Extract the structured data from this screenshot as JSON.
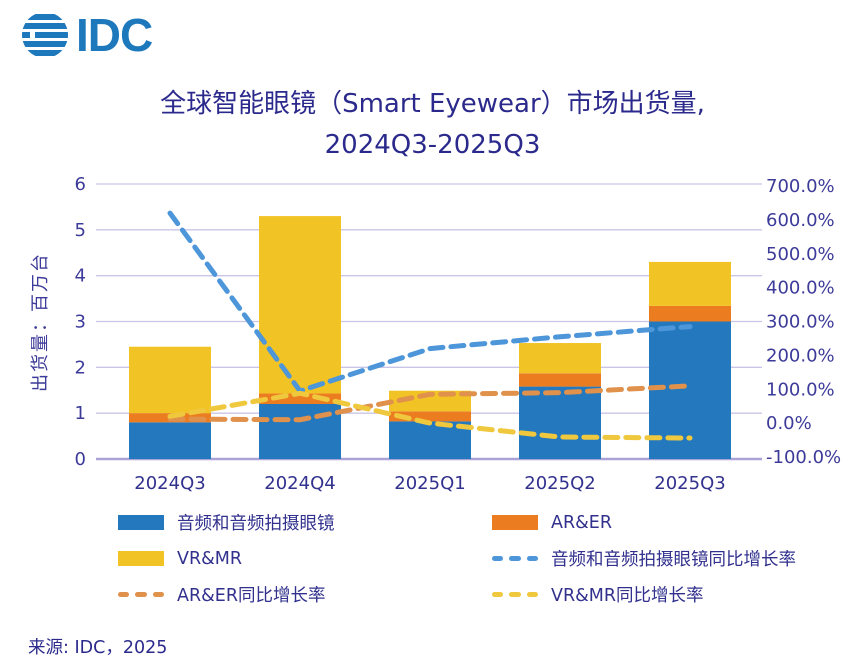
{
  "logo": {
    "text": "IDC"
  },
  "title": {
    "line1": "全球智能眼镜（Smart Eyewear）市场出货量,",
    "line2": "2024Q3-2025Q3"
  },
  "source": {
    "text": "来源: IDC，2025"
  },
  "colors": {
    "bar_blue": "#2478BE",
    "bar_orange": "#EC7C20",
    "bar_yellow": "#F2C324",
    "line_blue": "#4D96D9",
    "line_orange": "#E0914C",
    "line_yellow": "#EFC83E",
    "gridline": "#C9C5E6",
    "axis_line": "#A9A3D6",
    "text_ink": "#32318E",
    "title_ink": "#2B2A8C",
    "logo_blue": "#1E78BC"
  },
  "chart_data": {
    "type": "combo-stacked-bar-line",
    "categories": [
      "2024Q3",
      "2024Q4",
      "2025Q1",
      "2025Q2",
      "2025Q3"
    ],
    "bar_series": [
      {
        "name": "音频和音频拍摄眼镜",
        "color": "#2478BE",
        "values": [
          0.8,
          1.2,
          0.82,
          1.58,
          3.0
        ]
      },
      {
        "name": "AR&ER",
        "color": "#EC7C20",
        "values": [
          0.2,
          0.23,
          0.22,
          0.29,
          0.34
        ]
      },
      {
        "name": "VR&MR",
        "color": "#F2C324",
        "values": [
          1.45,
          3.87,
          0.45,
          0.66,
          0.96
        ]
      }
    ],
    "line_series": [
      {
        "name": "音频和音频拍摄眼镜同比增长率",
        "color": "#4D96D9",
        "values": [
          620,
          95,
          220,
          255,
          285
        ]
      },
      {
        "name": "AR&ER同比增长率",
        "color": "#E0914C",
        "values": [
          12,
          10,
          85,
          90,
          110
        ]
      },
      {
        "name": "VR&MR同比增长率",
        "color": "#EFC83E",
        "values": [
          20,
          88,
          0,
          -41,
          -44
        ]
      }
    ],
    "left_axis": {
      "title": "出货量：百万台",
      "min": 0,
      "max": 6,
      "step": 1
    },
    "right_axis": {
      "min": -100,
      "max": 700,
      "step": 100,
      "unit": "%",
      "decimals": 1
    },
    "grid": true,
    "legend_position": "bottom"
  },
  "legend": {
    "items": [
      {
        "label": "音频和音频拍摄眼镜",
        "swatch": "bar",
        "color": "#2478BE",
        "icon": "blue-bar-swatch"
      },
      {
        "label": "AR&ER",
        "swatch": "bar",
        "color": "#EC7C20",
        "icon": "orange-bar-swatch"
      },
      {
        "label": "VR&MR",
        "swatch": "bar",
        "color": "#F2C324",
        "icon": "yellow-bar-swatch"
      },
      {
        "label": "音频和音频拍摄眼镜同比增长率",
        "swatch": "dash",
        "color": "#4D96D9",
        "icon": "blue-dashed-line-swatch"
      },
      {
        "label": "AR&ER同比增长率",
        "swatch": "dash",
        "color": "#E0914C",
        "icon": "orange-dashed-line-swatch"
      },
      {
        "label": "VR&MR同比增长率",
        "swatch": "dash",
        "color": "#EFC83E",
        "icon": "yellow-dashed-line-swatch"
      }
    ]
  }
}
